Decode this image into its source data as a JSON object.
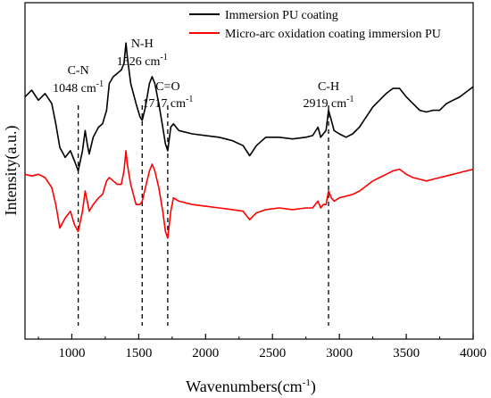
{
  "chart_data": {
    "type": "line",
    "title": "",
    "xlabel": "Wavenumbers(cm",
    "xlabel_sup": "-1",
    "xlabel_close": ")",
    "ylabel": "Intensity(a.u.)",
    "xlim": [
      650,
      4000
    ],
    "x_ticks": [
      1000,
      1500,
      2000,
      2500,
      3000,
      3500,
      4000
    ],
    "x_tick_labels": [
      "1000",
      "1500",
      "2000",
      "2500",
      "3000",
      "3500",
      "4000"
    ],
    "y_ticks_shown": false,
    "grid": false,
    "legend_position": "top-right",
    "series": [
      {
        "name": "Immersion PU coating",
        "color": "#000000",
        "points": [
          [
            650,
            0.72
          ],
          [
            700,
            0.74
          ],
          [
            750,
            0.71
          ],
          [
            800,
            0.73
          ],
          [
            850,
            0.7
          ],
          [
            880,
            0.64
          ],
          [
            910,
            0.57
          ],
          [
            950,
            0.54
          ],
          [
            990,
            0.56
          ],
          [
            1020,
            0.53
          ],
          [
            1048,
            0.5
          ],
          [
            1080,
            0.56
          ],
          [
            1100,
            0.62
          ],
          [
            1115,
            0.58
          ],
          [
            1130,
            0.55
          ],
          [
            1160,
            0.6
          ],
          [
            1200,
            0.63
          ],
          [
            1230,
            0.64
          ],
          [
            1260,
            0.68
          ],
          [
            1280,
            0.76
          ],
          [
            1310,
            0.78
          ],
          [
            1340,
            0.79
          ],
          [
            1370,
            0.8
          ],
          [
            1390,
            0.82
          ],
          [
            1405,
            0.88
          ],
          [
            1415,
            0.84
          ],
          [
            1440,
            0.76
          ],
          [
            1480,
            0.7
          ],
          [
            1510,
            0.66
          ],
          [
            1526,
            0.65
          ],
          [
            1550,
            0.69
          ],
          [
            1580,
            0.76
          ],
          [
            1600,
            0.78
          ],
          [
            1620,
            0.76
          ],
          [
            1650,
            0.7
          ],
          [
            1680,
            0.63
          ],
          [
            1700,
            0.58
          ],
          [
            1717,
            0.56
          ],
          [
            1740,
            0.63
          ],
          [
            1760,
            0.64
          ],
          [
            1800,
            0.62
          ],
          [
            1900,
            0.61
          ],
          [
            2000,
            0.605
          ],
          [
            2100,
            0.6
          ],
          [
            2200,
            0.59
          ],
          [
            2280,
            0.575
          ],
          [
            2330,
            0.545
          ],
          [
            2380,
            0.575
          ],
          [
            2450,
            0.6
          ],
          [
            2550,
            0.6
          ],
          [
            2650,
            0.595
          ],
          [
            2750,
            0.6
          ],
          [
            2800,
            0.605
          ],
          [
            2840,
            0.63
          ],
          [
            2860,
            0.6
          ],
          [
            2880,
            0.61
          ],
          [
            2900,
            0.62
          ],
          [
            2919,
            0.68
          ],
          [
            2940,
            0.65
          ],
          [
            2960,
            0.62
          ],
          [
            3000,
            0.61
          ],
          [
            3050,
            0.6
          ],
          [
            3100,
            0.61
          ],
          [
            3150,
            0.63
          ],
          [
            3200,
            0.66
          ],
          [
            3250,
            0.69
          ],
          [
            3300,
            0.71
          ],
          [
            3350,
            0.73
          ],
          [
            3400,
            0.745
          ],
          [
            3450,
            0.745
          ],
          [
            3500,
            0.72
          ],
          [
            3550,
            0.7
          ],
          [
            3600,
            0.68
          ],
          [
            3650,
            0.675
          ],
          [
            3700,
            0.68
          ],
          [
            3750,
            0.68
          ],
          [
            3800,
            0.7
          ],
          [
            3850,
            0.71
          ],
          [
            3900,
            0.72
          ],
          [
            3950,
            0.735
          ],
          [
            4000,
            0.75
          ]
        ]
      },
      {
        "name": "Micro-arc oxidation coating immersion PU",
        "color": "#ff0000",
        "points": [
          [
            650,
            0.49
          ],
          [
            700,
            0.485
          ],
          [
            750,
            0.49
          ],
          [
            800,
            0.48
          ],
          [
            850,
            0.45
          ],
          [
            880,
            0.4
          ],
          [
            910,
            0.33
          ],
          [
            950,
            0.36
          ],
          [
            990,
            0.38
          ],
          [
            1020,
            0.34
          ],
          [
            1048,
            0.32
          ],
          [
            1080,
            0.38
          ],
          [
            1100,
            0.44
          ],
          [
            1115,
            0.41
          ],
          [
            1130,
            0.38
          ],
          [
            1160,
            0.4
          ],
          [
            1200,
            0.42
          ],
          [
            1230,
            0.43
          ],
          [
            1260,
            0.47
          ],
          [
            1280,
            0.48
          ],
          [
            1310,
            0.47
          ],
          [
            1340,
            0.46
          ],
          [
            1370,
            0.46
          ],
          [
            1390,
            0.5
          ],
          [
            1405,
            0.56
          ],
          [
            1415,
            0.52
          ],
          [
            1440,
            0.46
          ],
          [
            1480,
            0.4
          ],
          [
            1510,
            0.4
          ],
          [
            1526,
            0.41
          ],
          [
            1550,
            0.45
          ],
          [
            1580,
            0.5
          ],
          [
            1600,
            0.52
          ],
          [
            1620,
            0.5
          ],
          [
            1650,
            0.45
          ],
          [
            1680,
            0.38
          ],
          [
            1700,
            0.32
          ],
          [
            1717,
            0.3
          ],
          [
            1740,
            0.38
          ],
          [
            1760,
            0.42
          ],
          [
            1800,
            0.41
          ],
          [
            1900,
            0.4
          ],
          [
            2000,
            0.395
          ],
          [
            2100,
            0.39
          ],
          [
            2200,
            0.385
          ],
          [
            2280,
            0.38
          ],
          [
            2330,
            0.355
          ],
          [
            2380,
            0.375
          ],
          [
            2450,
            0.385
          ],
          [
            2550,
            0.39
          ],
          [
            2650,
            0.385
          ],
          [
            2750,
            0.39
          ],
          [
            2800,
            0.39
          ],
          [
            2840,
            0.41
          ],
          [
            2860,
            0.39
          ],
          [
            2880,
            0.4
          ],
          [
            2900,
            0.4
          ],
          [
            2919,
            0.44
          ],
          [
            2940,
            0.42
          ],
          [
            2960,
            0.41
          ],
          [
            3000,
            0.42
          ],
          [
            3050,
            0.425
          ],
          [
            3100,
            0.43
          ],
          [
            3150,
            0.44
          ],
          [
            3200,
            0.455
          ],
          [
            3250,
            0.47
          ],
          [
            3300,
            0.48
          ],
          [
            3350,
            0.49
          ],
          [
            3400,
            0.5
          ],
          [
            3450,
            0.505
          ],
          [
            3500,
            0.49
          ],
          [
            3550,
            0.48
          ],
          [
            3600,
            0.475
          ],
          [
            3650,
            0.47
          ],
          [
            3700,
            0.475
          ],
          [
            3750,
            0.48
          ],
          [
            3800,
            0.485
          ],
          [
            3850,
            0.49
          ],
          [
            3900,
            0.495
          ],
          [
            3950,
            0.5
          ],
          [
            4000,
            0.505
          ]
        ]
      }
    ],
    "reference_lines": [
      {
        "x": 1048,
        "label_top": "C-N",
        "label_bottom": "1048 cm",
        "sup": "-1"
      },
      {
        "x": 1526,
        "label_top": "N-H",
        "label_bottom": "1526 cm",
        "sup": "-1"
      },
      {
        "x": 1717,
        "label_top": "C=O",
        "label_bottom": "1717 cm",
        "sup": "-1"
      },
      {
        "x": 2919,
        "label_top": "C-H",
        "label_bottom": "2919 cm",
        "sup": "-1"
      }
    ]
  }
}
